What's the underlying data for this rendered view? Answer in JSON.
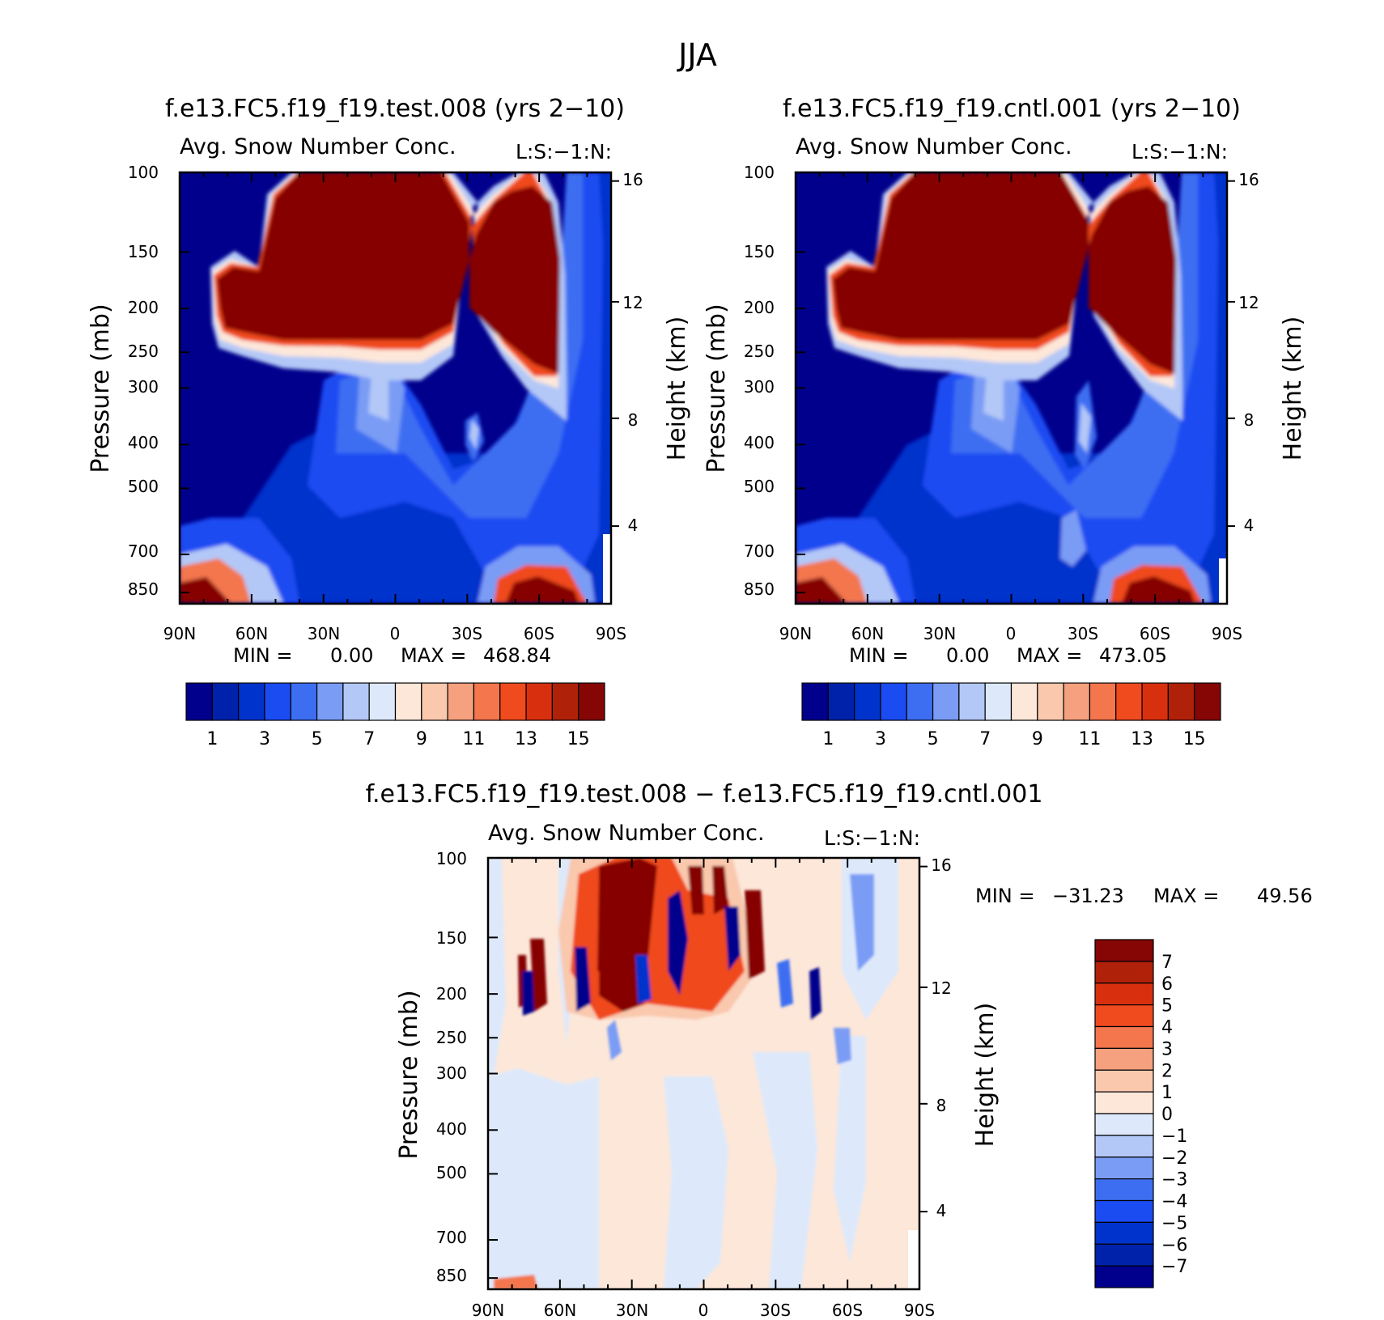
{
  "figure": {
    "season_title": "JJA"
  },
  "colors": {
    "abs_scale": [
      "#00008c",
      "#0022aa",
      "#0033cc",
      "#1a4cf2",
      "#3d6ef2",
      "#7a9cf5",
      "#b3c8f7",
      "#dde9fb",
      "#fde7d9",
      "#f9c8ad",
      "#f5a07f",
      "#f3764d",
      "#f04a1f",
      "#d8300e",
      "#b0210a",
      "#860606"
    ],
    "diff_scale": [
      "#00008c",
      "#0022aa",
      "#0033cc",
      "#1a4cf2",
      "#3d6ef2",
      "#7a9cf5",
      "#b3c8f7",
      "#dde9fb",
      "#fde7d9",
      "#f9c8ad",
      "#f5a07f",
      "#f3764d",
      "#f04a1f",
      "#d8300e",
      "#b0210a",
      "#860606"
    ]
  },
  "chart_data": [
    {
      "type": "heatmap",
      "id": "test",
      "title": "f.e13.FC5.f19_f19.test.008 (yrs 2−10)",
      "subtitle_left": "Avg. Snow Number Conc.",
      "subtitle_right": "L:S:−1:N:",
      "ylabel": "Pressure (mb)",
      "ylabel_right": "Height (km)",
      "x_ticks": [
        "90N",
        "60N",
        "30N",
        "0",
        "30S",
        "60S",
        "90S"
      ],
      "y_ticks": [
        "100",
        "150",
        "200",
        "250",
        "300",
        "400",
        "500",
        "700",
        "850"
      ],
      "y_ticks_right": [
        "16",
        "12",
        "8",
        "4"
      ],
      "xlim": [
        90,
        -90
      ],
      "ylim_mb": [
        100,
        900
      ],
      "min_label": "MIN =",
      "min_value": "0.00",
      "max_label": "MAX =",
      "max_value": "468.84",
      "colorbar_labels": [
        "1",
        "3",
        "5",
        "7",
        "9",
        "11",
        "13",
        "15"
      ]
    },
    {
      "type": "heatmap",
      "id": "cntl",
      "title": "f.e13.FC5.f19_f19.cntl.001 (yrs 2−10)",
      "subtitle_left": "Avg. Snow Number Conc.",
      "subtitle_right": "L:S:−1:N:",
      "ylabel": "Pressure (mb)",
      "ylabel_right": "Height (km)",
      "x_ticks": [
        "90N",
        "60N",
        "30N",
        "0",
        "30S",
        "60S",
        "90S"
      ],
      "y_ticks": [
        "100",
        "150",
        "200",
        "250",
        "300",
        "400",
        "500",
        "700",
        "850"
      ],
      "y_ticks_right": [
        "16",
        "12",
        "8",
        "4"
      ],
      "xlim": [
        90,
        -90
      ],
      "ylim_mb": [
        100,
        900
      ],
      "min_label": "MIN =",
      "min_value": "0.00",
      "max_label": "MAX =",
      "max_value": "473.05",
      "colorbar_labels": [
        "1",
        "3",
        "5",
        "7",
        "9",
        "11",
        "13",
        "15"
      ]
    },
    {
      "type": "heatmap",
      "id": "diff",
      "title": "f.e13.FC5.f19_f19.test.008 − f.e13.FC5.f19_f19.cntl.001",
      "subtitle_left": "Avg. Snow Number Conc.",
      "subtitle_right": "L:S:−1:N:",
      "ylabel": "Pressure (mb)",
      "ylabel_right": "Height (km)",
      "x_ticks": [
        "90N",
        "60N",
        "30N",
        "0",
        "30S",
        "60S",
        "90S"
      ],
      "y_ticks": [
        "100",
        "150",
        "200",
        "250",
        "300",
        "400",
        "500",
        "700",
        "850"
      ],
      "y_ticks_right": [
        "16",
        "12",
        "8",
        "4"
      ],
      "xlim": [
        90,
        -90
      ],
      "ylim_mb": [
        100,
        900
      ],
      "min_label": "MIN =",
      "min_value": "−31.23",
      "max_label": "MAX =",
      "max_value": "49.56",
      "colorbar_labels": [
        "7",
        "6",
        "5",
        "4",
        "3",
        "2",
        "1",
        "0",
        "−1",
        "−2",
        "−3",
        "−4",
        "−5",
        "−6",
        "−7"
      ]
    }
  ]
}
